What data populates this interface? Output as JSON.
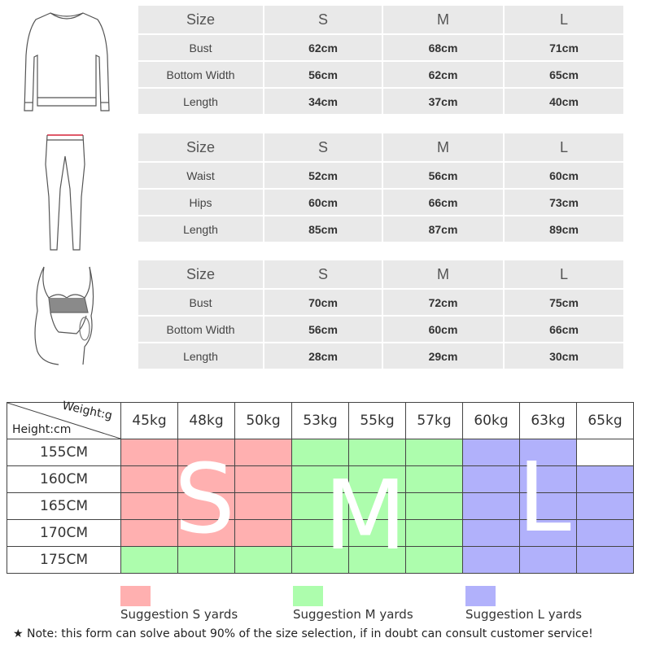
{
  "tables": [
    {
      "header": [
        "Size",
        "S",
        "M",
        "L"
      ],
      "rows": [
        {
          "label": "Bust",
          "values": [
            "62cm",
            "68cm",
            "71cm"
          ]
        },
        {
          "label": "Bottom Width",
          "values": [
            "56cm",
            "62cm",
            "65cm"
          ]
        },
        {
          "label": "Length",
          "values": [
            "34cm",
            "37cm",
            "40cm"
          ]
        }
      ]
    },
    {
      "header": [
        "Size",
        "S",
        "M",
        "L"
      ],
      "rows": [
        {
          "label": "Waist",
          "values": [
            "52cm",
            "56cm",
            "60cm"
          ]
        },
        {
          "label": "Hips",
          "values": [
            "60cm",
            "66cm",
            "73cm"
          ]
        },
        {
          "label": "Length",
          "values": [
            "85cm",
            "87cm",
            "89cm"
          ]
        }
      ]
    },
    {
      "header": [
        "Size",
        "S",
        "M",
        "L"
      ],
      "rows": [
        {
          "label": "Bust",
          "values": [
            "70cm",
            "72cm",
            "75cm"
          ]
        },
        {
          "label": "Bottom Width",
          "values": [
            "56cm",
            "60cm",
            "66cm"
          ]
        },
        {
          "label": "Length",
          "values": [
            "28cm",
            "29cm",
            "30cm"
          ]
        }
      ]
    }
  ],
  "grid": {
    "weight_label": "Weight:g",
    "height_label": "Height:cm",
    "weights": [
      "45kg",
      "48kg",
      "50kg",
      "53kg",
      "55kg",
      "57kg",
      "60kg",
      "63kg",
      "65kg"
    ],
    "heights": [
      "155CM",
      "160CM",
      "165CM",
      "170CM",
      "175CM"
    ],
    "cells": [
      [
        "s",
        "s",
        "s",
        "m",
        "m",
        "m",
        "l",
        "l",
        "w"
      ],
      [
        "s",
        "s",
        "s",
        "m",
        "m",
        "m",
        "l",
        "l",
        "l"
      ],
      [
        "s",
        "s",
        "s",
        "m",
        "m",
        "m",
        "l",
        "l",
        "l"
      ],
      [
        "s",
        "s",
        "s",
        "m",
        "m",
        "m",
        "l",
        "l",
        "l"
      ],
      [
        "m",
        "m",
        "m",
        "m",
        "m",
        "m",
        "l",
        "l",
        "l"
      ]
    ],
    "big_letters": {
      "s": "S",
      "m": "M",
      "l": "L"
    }
  },
  "legend": [
    {
      "label": "Suggestion S yards",
      "color": "#ffb0b0"
    },
    {
      "label": "Suggestion M yards",
      "color": "#adfdad"
    },
    {
      "label": "Suggestion L yards",
      "color": "#b1b1fb"
    }
  ],
  "note": "★ Note: this form can solve about 90% of the size selection, if in doubt can consult customer service!",
  "colors": {
    "table_bg": "#e9e9e9",
    "grid_line": "#444444"
  }
}
